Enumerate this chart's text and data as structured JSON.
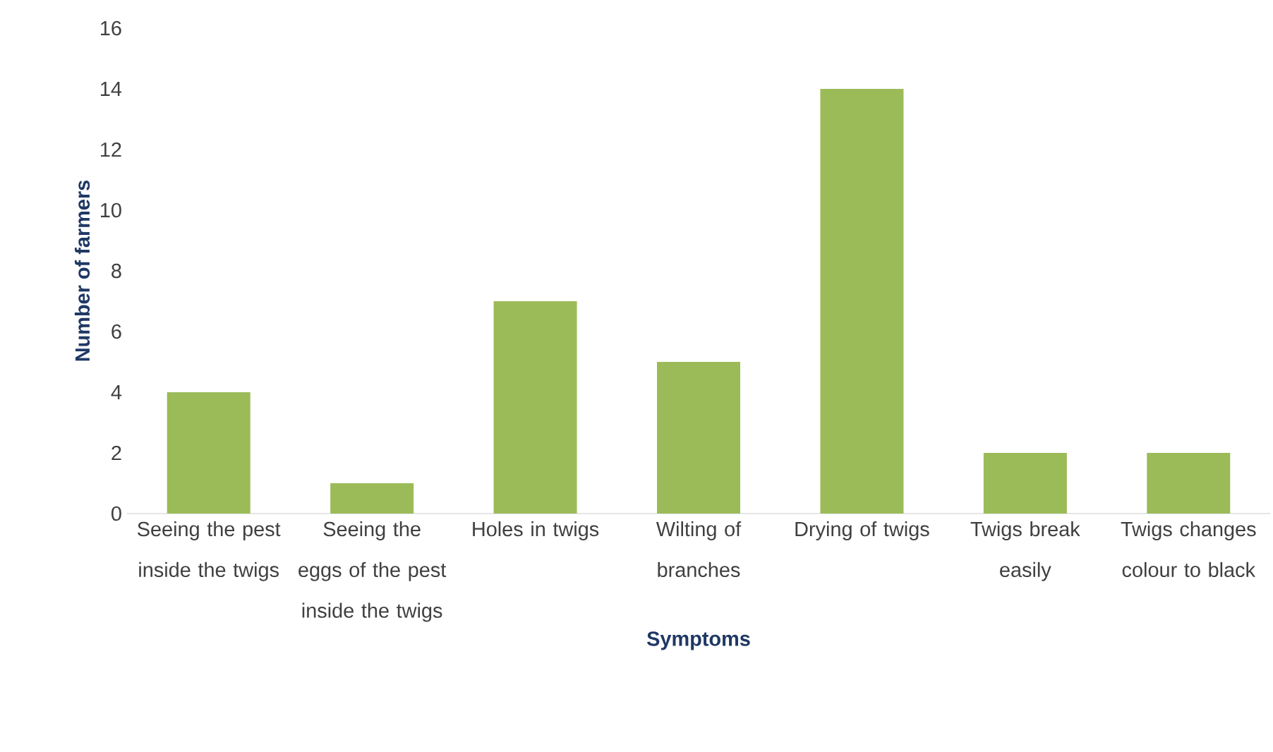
{
  "chart_data": {
    "type": "bar",
    "categories": [
      "Seeing the pest inside the twigs",
      "Seeing the eggs of the pest inside the twigs",
      "Holes in twigs",
      "Wilting of branches",
      "Drying of twigs",
      "Twigs break easily",
      "Twigs changes colour to black"
    ],
    "values": [
      4,
      1,
      7,
      5,
      14,
      2,
      2
    ],
    "color": "#9bbb59",
    "xlabel": "Symptoms",
    "ylabel": "Number of farmers",
    "ylim": [
      0,
      16
    ],
    "yticks": [
      0,
      2,
      4,
      6,
      8,
      10,
      12,
      14,
      16
    ]
  }
}
